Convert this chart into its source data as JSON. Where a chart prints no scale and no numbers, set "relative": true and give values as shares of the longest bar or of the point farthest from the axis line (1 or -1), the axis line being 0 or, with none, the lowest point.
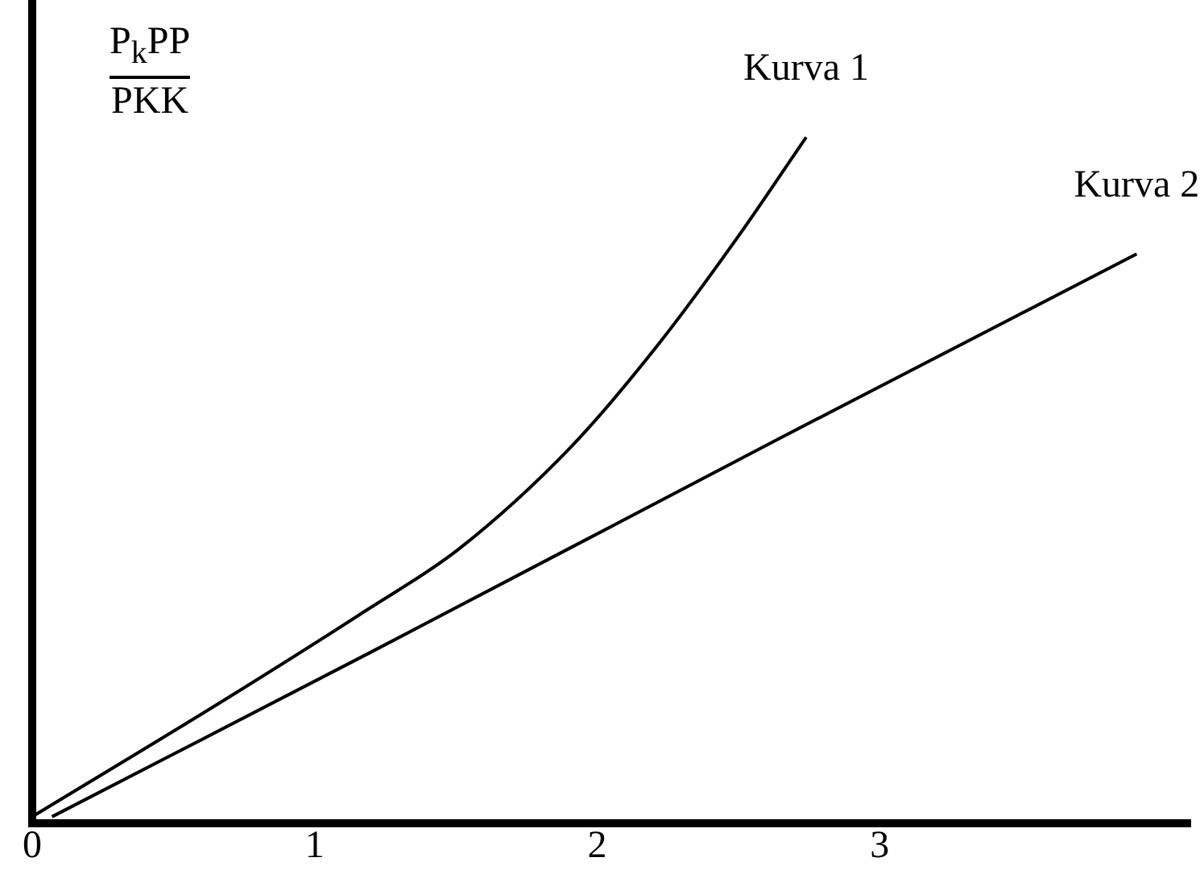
{
  "chart_data": {
    "type": "line",
    "ylabel": "P$_{k}$PP\nPKK",
    "relative": true,
    "tick_labels": "x",
    "xlim": [
      0,
      4.1
    ],
    "xticks": [
      0,
      1,
      2,
      3
    ],
    "series": [
      {
        "name": "Kurva 1",
        "color": "#000000",
        "x": [
          0,
          0.68,
          1.18,
          1.51,
          1.91,
          2.22,
          2.49,
          2.74
        ],
        "values": [
          0.01,
          0.18,
          0.31,
          0.4,
          0.55,
          0.7,
          0.85,
          1
        ]
      },
      {
        "name": "Kurva 2",
        "color": "#000000",
        "x": [
          0.07,
          1.2,
          2.64,
          3.91
        ],
        "values": [
          0.01,
          0.25,
          0.56,
          0.83
        ]
      }
    ]
  }
}
